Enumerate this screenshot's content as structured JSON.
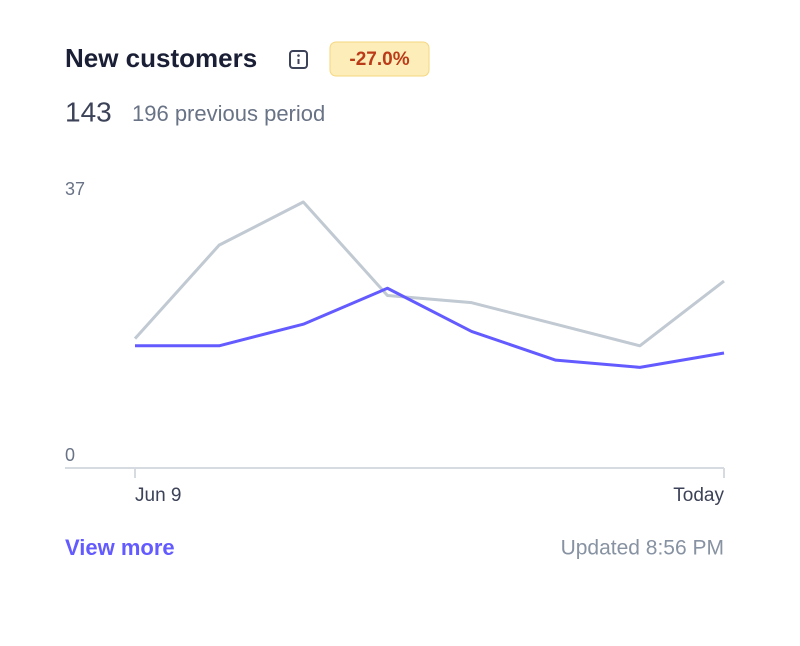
{
  "header": {
    "title": "New customers",
    "badge": "-27.0%",
    "current": "143",
    "previous": "196 previous period"
  },
  "chart_data": {
    "type": "line",
    "categories": [
      "Jun 9",
      null,
      null,
      null,
      null,
      null,
      null,
      "Today"
    ],
    "series": [
      {
        "color": "#c1c9d2",
        "values": [
          18,
          31,
          37,
          24,
          23,
          20,
          17,
          26
        ]
      },
      {
        "color": "#635bff",
        "values": [
          17,
          17,
          20,
          25,
          19,
          15,
          14,
          16
        ]
      }
    ],
    "ylim": [
      0,
      37
    ],
    "yticks": [
      0,
      37
    ],
    "grid": false
  },
  "footer": {
    "link": "View more",
    "updated": "Updated 8:56 PM"
  }
}
